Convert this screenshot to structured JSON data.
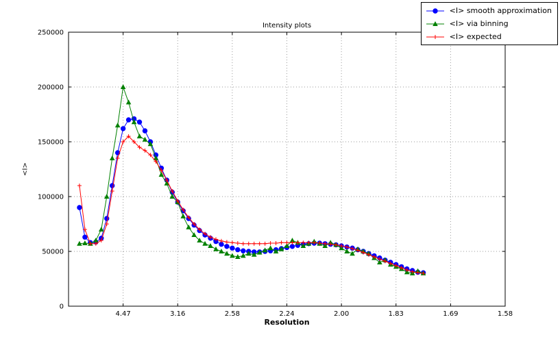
{
  "chart_data": {
    "type": "line",
    "title": "Intensity plots",
    "xlabel": "Resolution",
    "ylabel": "<I>",
    "grid": true,
    "legend_position": "top-right",
    "x_axis": {
      "min": 0.0,
      "max": 0.4,
      "ticks": [
        {
          "value": 0.05,
          "label": "4.47"
        },
        {
          "value": 0.1,
          "label": "3.16"
        },
        {
          "value": 0.15,
          "label": "2.58"
        },
        {
          "value": 0.2,
          "label": "2.24"
        },
        {
          "value": 0.25,
          "label": "2.00"
        },
        {
          "value": 0.3,
          "label": "1.83"
        },
        {
          "value": 0.35,
          "label": "1.69"
        },
        {
          "value": 0.4,
          "label": "1.58"
        }
      ]
    },
    "y_axis": {
      "min": 0,
      "max": 250000,
      "ticks": [
        {
          "value": 0,
          "label": "0"
        },
        {
          "value": 50000,
          "label": "50000"
        },
        {
          "value": 100000,
          "label": "100000"
        },
        {
          "value": 150000,
          "label": "150000"
        },
        {
          "value": 200000,
          "label": "200000"
        },
        {
          "value": 250000,
          "label": "250000"
        }
      ]
    },
    "x": [
      0.01,
      0.015,
      0.02,
      0.025,
      0.03,
      0.035,
      0.04,
      0.045,
      0.05,
      0.055,
      0.06,
      0.065,
      0.07,
      0.075,
      0.08,
      0.085,
      0.09,
      0.095,
      0.1,
      0.105,
      0.11,
      0.115,
      0.12,
      0.125,
      0.13,
      0.135,
      0.14,
      0.145,
      0.15,
      0.155,
      0.16,
      0.165,
      0.17,
      0.175,
      0.18,
      0.185,
      0.19,
      0.195,
      0.2,
      0.205,
      0.21,
      0.215,
      0.22,
      0.225,
      0.23,
      0.235,
      0.24,
      0.245,
      0.25,
      0.255,
      0.26,
      0.265,
      0.27,
      0.275,
      0.28,
      0.285,
      0.29,
      0.295,
      0.3,
      0.305,
      0.31,
      0.315,
      0.32,
      0.325
    ],
    "series": [
      {
        "name": "<I> smooth approximation",
        "color": "#0000ff",
        "marker": "circle",
        "values": [
          90000,
          63000,
          58000,
          58500,
          62000,
          80000,
          110000,
          140000,
          162000,
          170000,
          171000,
          168000,
          160000,
          150000,
          138000,
          126000,
          115000,
          104000,
          95000,
          87000,
          80000,
          74000,
          69000,
          65000,
          62000,
          59000,
          56500,
          54500,
          53000,
          51500,
          50500,
          50000,
          49500,
          49500,
          50000,
          50500,
          51500,
          52500,
          53500,
          54500,
          55500,
          56500,
          57000,
          57500,
          57500,
          57000,
          56500,
          56000,
          55000,
          54000,
          53000,
          51500,
          50000,
          48000,
          46000,
          44000,
          42000,
          40000,
          38000,
          36000,
          34000,
          32500,
          31000,
          30500
        ]
      },
      {
        "name": "<I> via binning",
        "color": "#008000",
        "marker": "triangle",
        "values": [
          57000,
          57500,
          57000,
          60000,
          70000,
          100000,
          135000,
          165000,
          200000,
          186000,
          168000,
          155000,
          152000,
          148000,
          135000,
          120000,
          112000,
          100000,
          95000,
          82000,
          72000,
          65000,
          60000,
          57000,
          55000,
          52000,
          50000,
          48000,
          46000,
          45000,
          46000,
          48000,
          47000,
          49000,
          51000,
          53000,
          50000,
          52000,
          55000,
          60000,
          58000,
          55000,
          57000,
          59000,
          57000,
          55000,
          58000,
          56000,
          53000,
          50000,
          48000,
          52000,
          50000,
          48000,
          44000,
          40000,
          42000,
          38000,
          36000,
          34000,
          31000,
          30000,
          32000,
          30000
        ]
      },
      {
        "name": "<I> expected",
        "color": "#ff0000",
        "marker": "plus",
        "values": [
          110000,
          70000,
          57000,
          57000,
          60000,
          75000,
          105000,
          135000,
          150000,
          155000,
          150000,
          145000,
          142000,
          138000,
          132000,
          124000,
          115000,
          105000,
          96000,
          88000,
          81000,
          75000,
          70000,
          66000,
          63000,
          61000,
          59500,
          58500,
          58000,
          57500,
          57000,
          57000,
          57000,
          57000,
          57000,
          57500,
          57500,
          58000,
          58000,
          58000,
          58000,
          58000,
          58000,
          58000,
          57500,
          57000,
          56500,
          56000,
          55000,
          54000,
          52500,
          51000,
          49000,
          47000,
          45000,
          43000,
          41000,
          39000,
          37000,
          35000,
          33000,
          31500,
          30500,
          30000
        ]
      }
    ]
  }
}
